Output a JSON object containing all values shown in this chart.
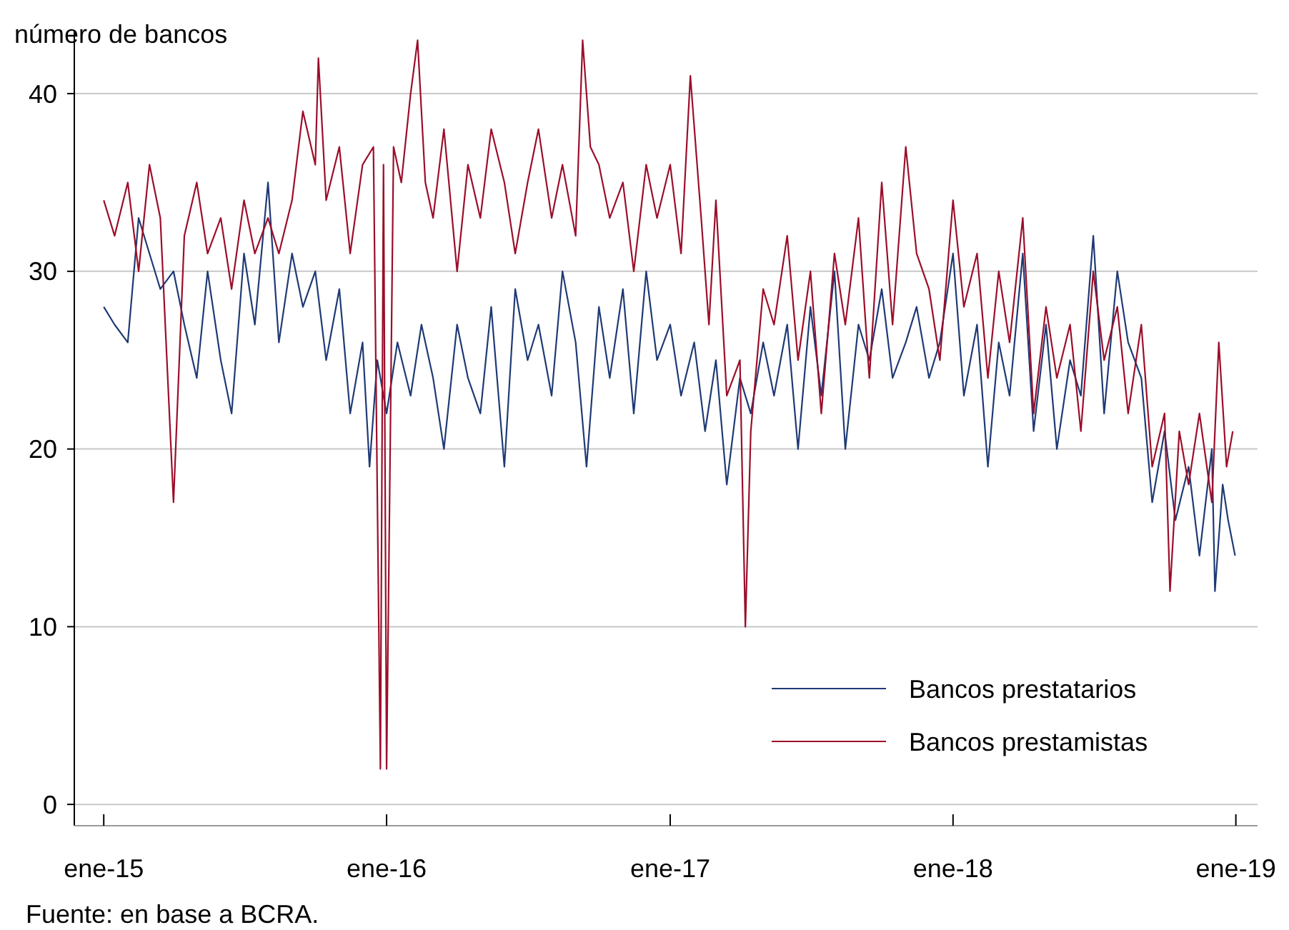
{
  "chart_data": {
    "type": "line",
    "ylabel": "número de bancos",
    "annotations": [
      "Fuente: en base a BCRA."
    ],
    "xlim": [
      "2014-11-24",
      "2019-01-29"
    ],
    "ylim": [
      -1.2,
      43.5
    ],
    "xticks": [
      {
        "value": "2015-01-01",
        "label": "ene-15"
      },
      {
        "value": "2016-01-01",
        "label": "ene-16"
      },
      {
        "value": "2017-01-01",
        "label": "ene-17"
      },
      {
        "value": "2018-01-01",
        "label": "ene-18"
      },
      {
        "value": "2019-01-01",
        "label": "ene-19"
      }
    ],
    "yticks": [
      0,
      10,
      20,
      30,
      40
    ],
    "grid": "y",
    "legend": "bottom right",
    "line_style": "solid",
    "marker": "none",
    "series": [
      {
        "name": "Bancos prestatarios",
        "color": "#1f3a75",
        "x": [
          "2015-01-01",
          "2015-01-15",
          "2015-02-01",
          "2015-02-15",
          "2015-03-01",
          "2015-03-15",
          "2015-04-01",
          "2015-04-15",
          "2015-05-01",
          "2015-05-15",
          "2015-06-01",
          "2015-06-15",
          "2015-07-01",
          "2015-07-15",
          "2015-08-01",
          "2015-08-15",
          "2015-09-01",
          "2015-09-15",
          "2015-10-01",
          "2015-10-15",
          "2015-11-01",
          "2015-11-15",
          "2015-12-01",
          "2015-12-10",
          "2015-12-20",
          "2016-01-01",
          "2016-01-15",
          "2016-02-01",
          "2016-02-15",
          "2016-03-01",
          "2016-03-15",
          "2016-04-01",
          "2016-04-15",
          "2016-05-01",
          "2016-05-15",
          "2016-06-01",
          "2016-06-15",
          "2016-07-01",
          "2016-07-15",
          "2016-08-01",
          "2016-08-15",
          "2016-09-01",
          "2016-09-15",
          "2016-10-01",
          "2016-10-15",
          "2016-11-01",
          "2016-11-15",
          "2016-12-01",
          "2016-12-15",
          "2017-01-01",
          "2017-01-15",
          "2017-02-01",
          "2017-02-15",
          "2017-03-01",
          "2017-03-15",
          "2017-04-01",
          "2017-04-15",
          "2017-05-01",
          "2017-05-15",
          "2017-06-01",
          "2017-06-15",
          "2017-07-01",
          "2017-07-15",
          "2017-08-01",
          "2017-08-15",
          "2017-09-01",
          "2017-09-15",
          "2017-10-01",
          "2017-10-15",
          "2017-11-01",
          "2017-11-15",
          "2017-12-01",
          "2017-12-15",
          "2018-01-01",
          "2018-01-15",
          "2018-02-01",
          "2018-02-15",
          "2018-03-01",
          "2018-03-15",
          "2018-04-01",
          "2018-04-15",
          "2018-05-01",
          "2018-05-15",
          "2018-06-01",
          "2018-06-15",
          "2018-07-01",
          "2018-07-15",
          "2018-08-01",
          "2018-08-15",
          "2018-09-01",
          "2018-09-15",
          "2018-10-01",
          "2018-10-15",
          "2018-11-01",
          "2018-11-15",
          "2018-12-01",
          "2018-12-05",
          "2018-12-15",
          "2018-12-22",
          "2018-12-31"
        ],
        "values": [
          28,
          27,
          26,
          33,
          31,
          29,
          30,
          27,
          24,
          30,
          25,
          22,
          31,
          27,
          35,
          26,
          31,
          28,
          30,
          25,
          29,
          22,
          26,
          19,
          25,
          22,
          26,
          23,
          27,
          24,
          20,
          27,
          24,
          22,
          28,
          19,
          29,
          25,
          27,
          23,
          30,
          26,
          19,
          28,
          24,
          29,
          22,
          30,
          25,
          27,
          23,
          26,
          21,
          25,
          18,
          24,
          22,
          26,
          23,
          27,
          20,
          28,
          23,
          30,
          20,
          27,
          25,
          29,
          24,
          26,
          28,
          24,
          26,
          31,
          23,
          27,
          19,
          26,
          23,
          31,
          21,
          27,
          20,
          25,
          23,
          32,
          22,
          30,
          26,
          24,
          17,
          21,
          16,
          19,
          14,
          20,
          12,
          18,
          16,
          14
        ]
      },
      {
        "name": "Bancos prestamistas",
        "color": "#9b0e2a",
        "x": [
          "2015-01-01",
          "2015-01-15",
          "2015-02-01",
          "2015-02-15",
          "2015-03-01",
          "2015-03-15",
          "2015-04-01",
          "2015-04-15",
          "2015-05-01",
          "2015-05-15",
          "2015-06-01",
          "2015-06-15",
          "2015-07-01",
          "2015-07-15",
          "2015-08-01",
          "2015-08-15",
          "2015-09-01",
          "2015-09-15",
          "2015-10-01",
          "2015-10-05",
          "2015-10-15",
          "2015-11-01",
          "2015-11-15",
          "2015-12-01",
          "2015-12-15",
          "2015-12-24",
          "2015-12-28",
          "2016-01-01",
          "2016-01-10",
          "2016-01-20",
          "2016-02-01",
          "2016-02-10",
          "2016-02-20",
          "2016-03-01",
          "2016-03-15",
          "2016-04-01",
          "2016-04-15",
          "2016-05-01",
          "2016-05-15",
          "2016-06-01",
          "2016-06-15",
          "2016-07-01",
          "2016-07-15",
          "2016-08-01",
          "2016-08-15",
          "2016-09-01",
          "2016-09-10",
          "2016-09-20",
          "2016-10-01",
          "2016-10-15",
          "2016-11-01",
          "2016-11-15",
          "2016-12-01",
          "2016-12-15",
          "2017-01-01",
          "2017-01-15",
          "2017-01-27",
          "2017-02-10",
          "2017-02-20",
          "2017-03-01",
          "2017-03-15",
          "2017-04-01",
          "2017-04-08",
          "2017-04-15",
          "2017-05-01",
          "2017-05-15",
          "2017-06-01",
          "2017-06-15",
          "2017-07-01",
          "2017-07-15",
          "2017-08-01",
          "2017-08-15",
          "2017-09-01",
          "2017-09-15",
          "2017-10-01",
          "2017-10-15",
          "2017-11-01",
          "2017-11-15",
          "2017-12-01",
          "2017-12-15",
          "2018-01-01",
          "2018-01-15",
          "2018-02-01",
          "2018-02-15",
          "2018-03-01",
          "2018-03-15",
          "2018-04-01",
          "2018-04-15",
          "2018-05-01",
          "2018-05-15",
          "2018-06-01",
          "2018-06-15",
          "2018-07-01",
          "2018-07-15",
          "2018-08-01",
          "2018-08-15",
          "2018-09-01",
          "2018-09-15",
          "2018-10-01",
          "2018-10-08",
          "2018-10-20",
          "2018-11-01",
          "2018-11-15",
          "2018-12-01",
          "2018-12-10",
          "2018-12-20",
          "2018-12-28"
        ],
        "values": [
          34,
          32,
          35,
          30,
          36,
          33,
          17,
          32,
          35,
          31,
          33,
          29,
          34,
          31,
          33,
          31,
          34,
          39,
          36,
          42,
          34,
          37,
          31,
          36,
          37,
          2,
          36,
          2,
          37,
          35,
          40,
          43,
          35,
          33,
          38,
          30,
          36,
          33,
          38,
          35,
          31,
          35,
          38,
          33,
          36,
          32,
          43,
          37,
          36,
          33,
          35,
          30,
          36,
          33,
          36,
          31,
          41,
          33,
          27,
          34,
          23,
          25,
          10,
          21,
          29,
          27,
          32,
          25,
          30,
          22,
          31,
          27,
          33,
          24,
          35,
          27,
          37,
          31,
          29,
          25,
          34,
          28,
          31,
          24,
          30,
          26,
          33,
          22,
          28,
          24,
          27,
          21,
          30,
          25,
          28,
          22,
          27,
          19,
          22,
          12,
          21,
          18,
          22,
          17,
          26,
          19,
          21
        ]
      }
    ]
  }
}
